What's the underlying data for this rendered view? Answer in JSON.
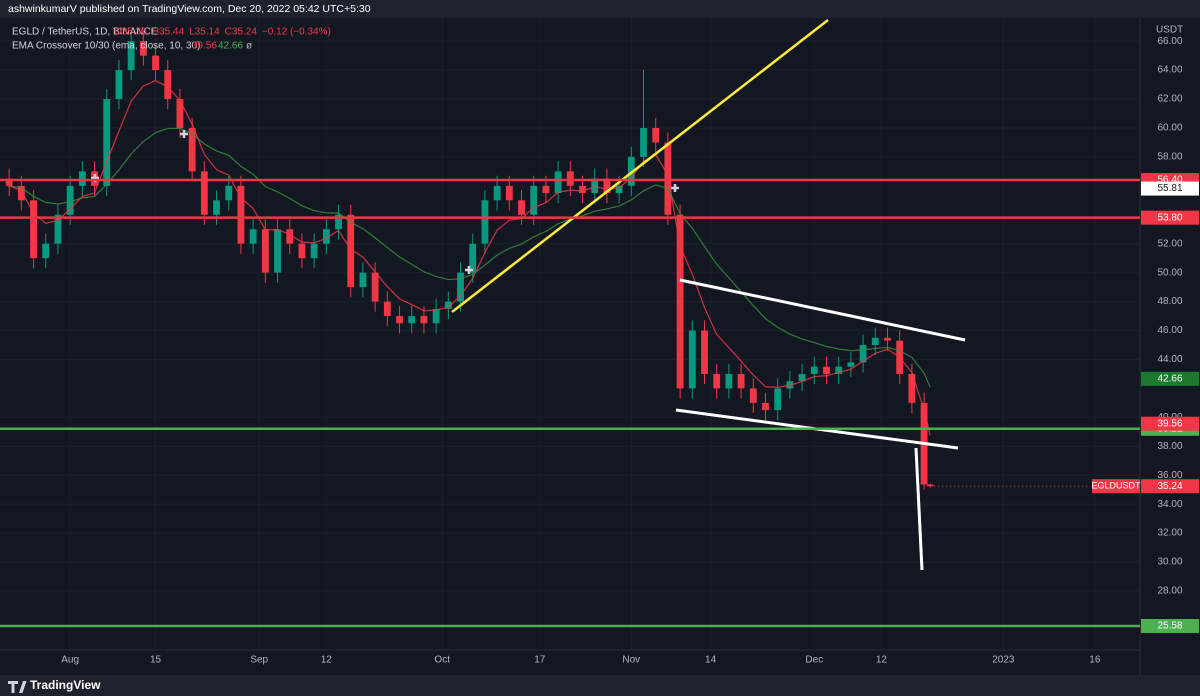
{
  "header": {
    "published": "ashwinkumarV published on TradingView.com, Dec 20, 2022 05:42 UTC+5:30",
    "footer": "TradingView"
  },
  "chart_data": {
    "type": "candlestick",
    "symbol": "EGLD / TetherUS, 1D, BINANCE",
    "ohlc_text": [
      "O35.36",
      "H35.44",
      "L35.14",
      "C35.24",
      "−0.12 (−0.34%)"
    ],
    "indicator": "EMA Crossover 10/30 (ema, close, 10, 30)",
    "indicator_values": [
      "39.56",
      "42.66",
      "ø"
    ],
    "currency": "USDT",
    "x": [
      -10,
      -8,
      -6,
      -4,
      -2,
      0,
      2,
      4,
      6,
      8,
      10,
      12,
      14,
      16,
      18,
      20,
      22,
      24,
      26,
      28,
      30,
      32,
      34,
      36,
      38,
      40,
      42,
      44,
      46,
      48,
      50,
      52,
      54,
      56,
      58,
      60,
      62,
      64,
      66,
      68,
      70,
      72,
      74,
      76,
      78,
      80,
      82,
      84,
      86,
      88,
      90,
      92,
      94,
      96,
      98,
      100,
      102,
      104,
      106,
      108,
      110,
      112,
      114,
      116,
      118,
      120,
      122,
      124,
      126,
      128,
      130,
      132,
      134,
      136,
      138,
      140,
      141
    ],
    "open": [
      56.5,
      56,
      55,
      51,
      52,
      54,
      56,
      57,
      56,
      62,
      64,
      66,
      65,
      64,
      62,
      60,
      57,
      54,
      55,
      56,
      52,
      53,
      50,
      53,
      52,
      51,
      52,
      53,
      54,
      49,
      50,
      48,
      47,
      46.5,
      47,
      46.5,
      47.5,
      48,
      50,
      52,
      55,
      56,
      55,
      54,
      56,
      55.5,
      57,
      56,
      55.5,
      56.5,
      55.5,
      56,
      58,
      60,
      59,
      54,
      42,
      46,
      43,
      42,
      43,
      42,
      41,
      40.5,
      42,
      42.5,
      43,
      43.5,
      43,
      43.5,
      43.8,
      45,
      45.5,
      45.3,
      43,
      41,
      35.36
    ],
    "high": [
      57.2,
      56.7,
      55.7,
      52.7,
      54.7,
      56.7,
      57.7,
      57.7,
      62.7,
      64.7,
      66.7,
      66.7,
      65.7,
      64.7,
      62.7,
      60.7,
      57.7,
      55.7,
      56.7,
      56.7,
      53.7,
      53.7,
      53.7,
      53.7,
      52.7,
      52.7,
      53.7,
      54.7,
      54.7,
      50.7,
      50.7,
      48.7,
      47.7,
      47.7,
      47.7,
      48.2,
      48.7,
      50.7,
      52.7,
      55.7,
      56.7,
      56.7,
      55.7,
      56.7,
      56.7,
      57.7,
      57.7,
      56.7,
      57.2,
      57.2,
      56.7,
      58.7,
      64,
      60.7,
      59.7,
      54.7,
      46.7,
      46.7,
      43.7,
      43.7,
      43.7,
      42.7,
      41.7,
      42.7,
      43.2,
      43.7,
      44.2,
      44.2,
      44.2,
      44.5,
      45.7,
      46.2,
      46.2,
      46,
      43.7,
      41.7,
      35.44
    ],
    "low": [
      55.3,
      54.3,
      50.3,
      50.3,
      51.3,
      53.3,
      55.3,
      55.3,
      55.3,
      61.3,
      63.3,
      64.3,
      63.3,
      61.3,
      59.3,
      56.3,
      53.3,
      53.3,
      54.3,
      51.3,
      51.3,
      49.3,
      49.3,
      51.3,
      50.3,
      50.3,
      51.3,
      52.3,
      48.3,
      48.3,
      47.3,
      46.3,
      45.8,
      45.8,
      45.8,
      45.8,
      46.8,
      47.3,
      49.3,
      51.3,
      54.3,
      54.3,
      53.3,
      53.3,
      54.8,
      54.8,
      55.3,
      54.8,
      54.8,
      54.8,
      54.8,
      55.3,
      57.3,
      58.3,
      53.3,
      41.3,
      41.3,
      42.3,
      41.3,
      41.3,
      41.3,
      40.3,
      39.8,
      39.8,
      41.3,
      41.8,
      42.3,
      42.3,
      42.3,
      42.8,
      43.1,
      44.3,
      44.6,
      42.3,
      40.3,
      35,
      35.14
    ],
    "close": [
      56,
      55,
      51,
      52,
      54,
      56,
      57,
      56,
      62,
      64,
      66,
      65,
      64,
      62,
      60,
      57,
      54,
      55,
      56,
      52,
      53,
      50,
      53,
      52,
      51,
      52,
      53,
      54,
      49,
      50,
      48,
      47,
      46.5,
      47,
      46.5,
      47.5,
      48,
      50,
      52,
      55,
      56,
      55,
      54,
      56,
      55.5,
      57,
      56,
      55.5,
      56.5,
      55.5,
      56,
      58,
      60,
      59,
      54,
      42,
      46,
      43,
      42,
      43,
      42,
      41,
      40.5,
      42,
      42.5,
      43,
      43.5,
      43,
      43.5,
      43.8,
      45,
      45.5,
      45.3,
      43,
      41,
      35.36,
      35.24
    ],
    "up_color": "#089981",
    "down_color": "#f23645",
    "xlim": [
      -11.5,
      175.4
    ],
    "ylim": [
      22.4,
      67.6
    ],
    "xticks": [
      {
        "value": 0,
        "label": "Aug"
      },
      {
        "value": 14,
        "label": "15"
      },
      {
        "value": 31,
        "label": "Sep"
      },
      {
        "value": 42,
        "label": "12"
      },
      {
        "value": 61,
        "label": "Oct"
      },
      {
        "value": 77,
        "label": "17"
      },
      {
        "value": 92,
        "label": "Nov"
      },
      {
        "value": 105,
        "label": "14"
      },
      {
        "value": 122,
        "label": "Dec"
      },
      {
        "value": 133,
        "label": "12"
      },
      {
        "value": 153,
        "label": "2023"
      },
      {
        "value": 168,
        "label": "16"
      }
    ],
    "yticks": [
      {
        "value": 28,
        "label": "28.00"
      },
      {
        "value": 30,
        "label": "30.00"
      },
      {
        "value": 32,
        "label": "32.00"
      },
      {
        "value": 34,
        "label": "34.00"
      },
      {
        "value": 36,
        "label": "36.00"
      },
      {
        "value": 38,
        "label": "38.00"
      },
      {
        "value": 40,
        "label": "40.00"
      },
      {
        "value": 44,
        "label": "44.00"
      },
      {
        "value": 46,
        "label": "46.00"
      },
      {
        "value": 48,
        "label": "48.00"
      },
      {
        "value": 50,
        "label": "50.00"
      },
      {
        "value": 52,
        "label": "52.00"
      },
      {
        "value": 58,
        "label": "58.00"
      },
      {
        "value": 60,
        "label": "60.00"
      },
      {
        "value": 62,
        "label": "62.00"
      },
      {
        "value": 64,
        "label": "64.00"
      },
      {
        "value": 66,
        "label": "66.00"
      }
    ],
    "grid": true,
    "levels": [
      {
        "value": 56.4,
        "label": "56.40",
        "color": "#f23645"
      },
      {
        "value": 53.8,
        "label": "53.80",
        "color": "#f23645"
      },
      {
        "value": 39.21,
        "label": "39.21",
        "color": "#4caf50"
      },
      {
        "value": 25.58,
        "label": "25.58",
        "color": "#4caf50"
      }
    ],
    "price_tags": [
      {
        "value": 55.81,
        "label": "55.81",
        "color": "#ffffff"
      },
      {
        "value": 42.66,
        "label": "42.66",
        "color": "#1b7a2f"
      },
      {
        "value": 39.56,
        "label": "39.56",
        "color": "#f23645"
      },
      {
        "value": 35.24,
        "label": "35.24",
        "name": "EGLDUSDT",
        "color": "#f23645"
      }
    ]
  }
}
